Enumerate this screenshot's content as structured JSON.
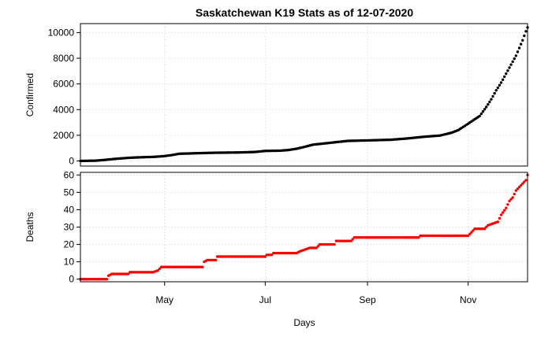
{
  "chart_data": {
    "type": "scatter",
    "title": "Saskatchewan K19 Stats as of 12-07-2020",
    "xlabel": "Days",
    "x_range": [
      "2020-03-11",
      "2020-12-07"
    ],
    "x_ticks": [
      {
        "date": "2020-05-01",
        "label": "May"
      },
      {
        "date": "2020-07-01",
        "label": "Jul"
      },
      {
        "date": "2020-09-01",
        "label": "Sep"
      },
      {
        "date": "2020-11-01",
        "label": "Nov"
      }
    ],
    "grid": true,
    "panels": [
      {
        "ylabel": "Confirmed",
        "ylim": [
          -400,
          10700
        ],
        "yticks": [
          0,
          2000,
          4000,
          6000,
          8000,
          10000
        ],
        "color": "#000000",
        "points": [
          [
            "2020-03-11",
            0
          ],
          [
            "2020-03-20",
            20
          ],
          [
            "2020-03-25",
            70
          ],
          [
            "2020-04-01",
            160
          ],
          [
            "2020-04-10",
            250
          ],
          [
            "2020-04-20",
            300
          ],
          [
            "2020-04-25",
            320
          ],
          [
            "2020-05-01",
            380
          ],
          [
            "2020-05-05",
            450
          ],
          [
            "2020-05-10",
            560
          ],
          [
            "2020-05-20",
            600
          ],
          [
            "2020-06-01",
            640
          ],
          [
            "2020-06-15",
            660
          ],
          [
            "2020-06-25",
            700
          ],
          [
            "2020-07-01",
            780
          ],
          [
            "2020-07-10",
            800
          ],
          [
            "2020-07-15",
            850
          ],
          [
            "2020-07-20",
            950
          ],
          [
            "2020-07-25",
            1100
          ],
          [
            "2020-07-30",
            1270
          ],
          [
            "2020-08-05",
            1350
          ],
          [
            "2020-08-12",
            1450
          ],
          [
            "2020-08-20",
            1560
          ],
          [
            "2020-09-01",
            1600
          ],
          [
            "2020-09-15",
            1650
          ],
          [
            "2020-09-25",
            1750
          ],
          [
            "2020-10-05",
            1880
          ],
          [
            "2020-10-15",
            1980
          ],
          [
            "2020-10-22",
            2200
          ],
          [
            "2020-10-26",
            2400
          ],
          [
            "2020-11-01",
            2900
          ],
          [
            "2020-11-05",
            3250
          ],
          [
            "2020-11-08",
            3500
          ],
          [
            "2020-11-12",
            4200
          ],
          [
            "2020-11-15",
            4800
          ],
          [
            "2020-11-18",
            5500
          ],
          [
            "2020-11-21",
            6100
          ],
          [
            "2020-11-24",
            6800
          ],
          [
            "2020-11-27",
            7500
          ],
          [
            "2020-11-30",
            8200
          ],
          [
            "2020-12-02",
            8800
          ],
          [
            "2020-12-04",
            9400
          ],
          [
            "2020-12-06",
            10100
          ],
          [
            "2020-12-07",
            10400
          ]
        ]
      },
      {
        "ylabel": "Deaths",
        "ylim": [
          -1.5,
          61.5
        ],
        "yticks": [
          0,
          10,
          20,
          30,
          40,
          50,
          60
        ],
        "color": "#ff0000",
        "points": [
          [
            "2020-03-11",
            0
          ],
          [
            "2020-03-27",
            0
          ],
          [
            "2020-03-28",
            2
          ],
          [
            "2020-03-30",
            3
          ],
          [
            "2020-04-09",
            3
          ],
          [
            "2020-04-10",
            4
          ],
          [
            "2020-04-24",
            4
          ],
          [
            "2020-04-27",
            5
          ],
          [
            "2020-04-29",
            7
          ],
          [
            "2020-05-24",
            7
          ],
          [
            "2020-05-25",
            10
          ],
          [
            "2020-05-27",
            11
          ],
          [
            "2020-06-01",
            11
          ],
          [
            "2020-06-02",
            13
          ],
          [
            "2020-07-01",
            13
          ],
          [
            "2020-07-02",
            14
          ],
          [
            "2020-07-05",
            14
          ],
          [
            "2020-07-06",
            15
          ],
          [
            "2020-07-20",
            15
          ],
          [
            "2020-07-22",
            16
          ],
          [
            "2020-07-28",
            18
          ],
          [
            "2020-08-01",
            18
          ],
          [
            "2020-08-03",
            20
          ],
          [
            "2020-08-12",
            20
          ],
          [
            "2020-08-13",
            22
          ],
          [
            "2020-08-22",
            22
          ],
          [
            "2020-08-24",
            24
          ],
          [
            "2020-10-02",
            24
          ],
          [
            "2020-10-03",
            25
          ],
          [
            "2020-11-01",
            25
          ],
          [
            "2020-11-03",
            27
          ],
          [
            "2020-11-05",
            29
          ],
          [
            "2020-11-11",
            29
          ],
          [
            "2020-11-13",
            31
          ],
          [
            "2020-11-16",
            32
          ],
          [
            "2020-11-19",
            33
          ],
          [
            "2020-11-21",
            37
          ],
          [
            "2020-11-24",
            41
          ],
          [
            "2020-11-26",
            45
          ],
          [
            "2020-11-28",
            47
          ],
          [
            "2020-11-30",
            51
          ],
          [
            "2020-12-02",
            53
          ],
          [
            "2020-12-04",
            55
          ],
          [
            "2020-12-06",
            57
          ],
          [
            "2020-12-07",
            60
          ]
        ]
      }
    ]
  }
}
